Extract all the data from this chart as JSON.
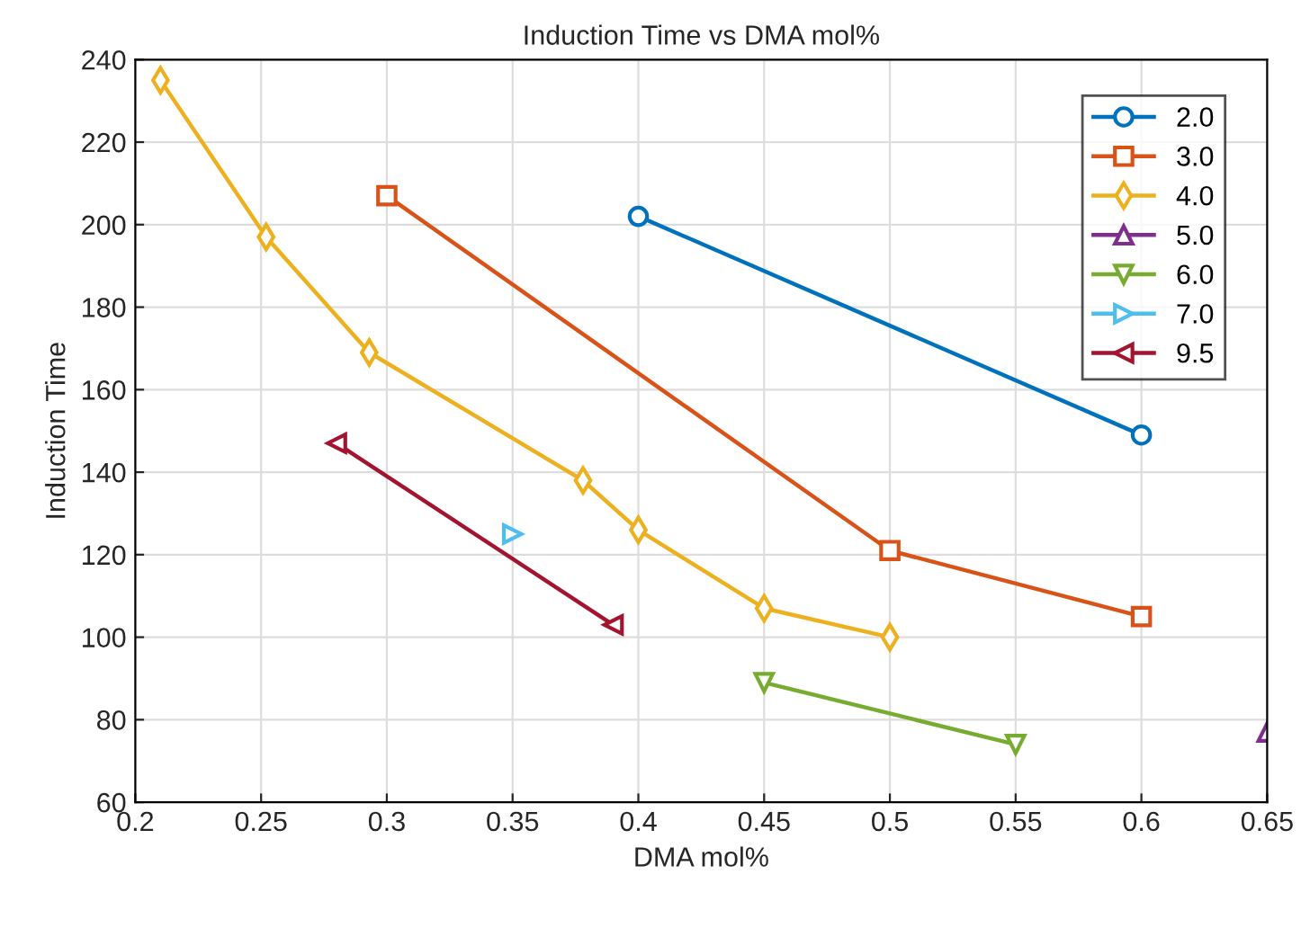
{
  "chart_data": {
    "type": "line",
    "title": "Induction Time vs DMA mol%",
    "xlabel": "DMA mol%",
    "ylabel": "Induction Time",
    "xlim": [
      0.2,
      0.65
    ],
    "xticks": [
      0.2,
      0.25,
      0.3,
      0.35,
      0.4,
      0.45,
      0.5,
      0.55,
      0.6,
      0.65
    ],
    "ylim": [
      60,
      240
    ],
    "yticks": [
      60,
      80,
      100,
      120,
      140,
      160,
      180,
      200,
      220,
      240
    ],
    "grid": true,
    "legend": "top right",
    "line_style": "solid",
    "series": [
      {
        "name": "2.0",
        "color": "#0072bd",
        "marker": "circle",
        "x": [
          0.4,
          0.6
        ],
        "values": [
          202,
          149
        ]
      },
      {
        "name": "3.0",
        "color": "#d95319",
        "marker": "square",
        "x": [
          0.3,
          0.5,
          0.6
        ],
        "values": [
          207,
          121,
          105
        ]
      },
      {
        "name": "4.0",
        "color": "#edb120",
        "marker": "diamond",
        "x": [
          0.21,
          0.252,
          0.293,
          0.378,
          0.4,
          0.45,
          0.5
        ],
        "values": [
          235,
          197,
          169,
          138,
          126,
          107,
          100
        ]
      },
      {
        "name": "5.0",
        "color": "#7e2f8e",
        "marker": "triangle",
        "x": [
          0.65
        ],
        "values": [
          77
        ]
      },
      {
        "name": "6.0",
        "color": "#77ac30",
        "marker": "triangle_down",
        "x": [
          0.45,
          0.55
        ],
        "values": [
          89,
          74
        ]
      },
      {
        "name": "7.0",
        "color": "#4dbeee",
        "marker": "triangle_right",
        "x": [
          0.35
        ],
        "values": [
          125
        ]
      },
      {
        "name": "9.5",
        "color": "#a2142f",
        "marker": "triangle_left",
        "x": [
          0.28,
          0.39
        ],
        "values": [
          147,
          103
        ]
      }
    ]
  }
}
